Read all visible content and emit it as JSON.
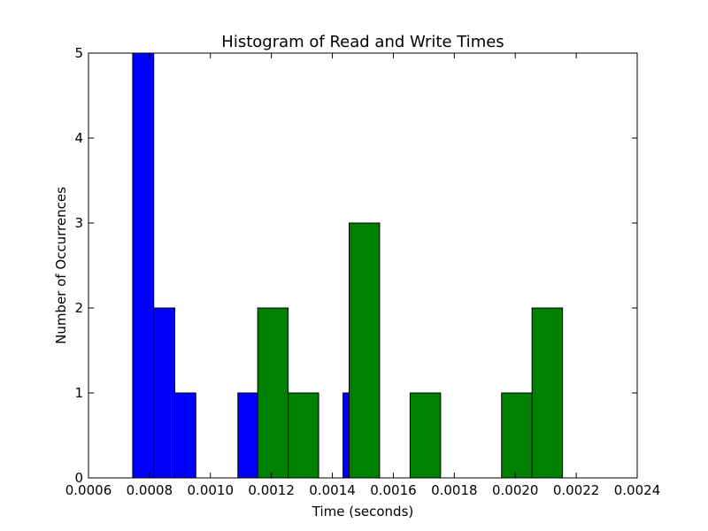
{
  "chart_data": {
    "type": "bar",
    "title": "Histogram of Read and Write Times",
    "xlabel": "Time (seconds)",
    "ylabel": "Number of Occurrences",
    "xlim": [
      0.0006,
      0.0024
    ],
    "ylim": [
      0,
      5
    ],
    "x_ticks": [
      "0.0006",
      "0.0008",
      "0.0010",
      "0.0012",
      "0.0014",
      "0.0016",
      "0.0018",
      "0.0020",
      "0.0022",
      "0.0024"
    ],
    "y_ticks": [
      "0",
      "1",
      "2",
      "3",
      "4",
      "5"
    ],
    "grid": false,
    "series": [
      {
        "color": "#0000ff",
        "bins": [
          {
            "x0": 0.000745,
            "x1": 0.000814,
            "count": 5
          },
          {
            "x0": 0.000814,
            "x1": 0.000883,
            "count": 2
          },
          {
            "x0": 0.000883,
            "x1": 0.000952,
            "count": 1
          },
          {
            "x0": 0.00109,
            "x1": 0.001159,
            "count": 1
          },
          {
            "x0": 0.001435,
            "x1": 0.001504,
            "count": 1
          }
        ]
      },
      {
        "color": "#008000",
        "bins": [
          {
            "x0": 0.001155,
            "x1": 0.001255,
            "count": 2
          },
          {
            "x0": 0.001255,
            "x1": 0.001355,
            "count": 1
          },
          {
            "x0": 0.001455,
            "x1": 0.001555,
            "count": 3
          },
          {
            "x0": 0.001655,
            "x1": 0.001755,
            "count": 1
          },
          {
            "x0": 0.001955,
            "x1": 0.002055,
            "count": 1
          },
          {
            "x0": 0.002055,
            "x1": 0.002155,
            "count": 2
          }
        ]
      }
    ]
  }
}
